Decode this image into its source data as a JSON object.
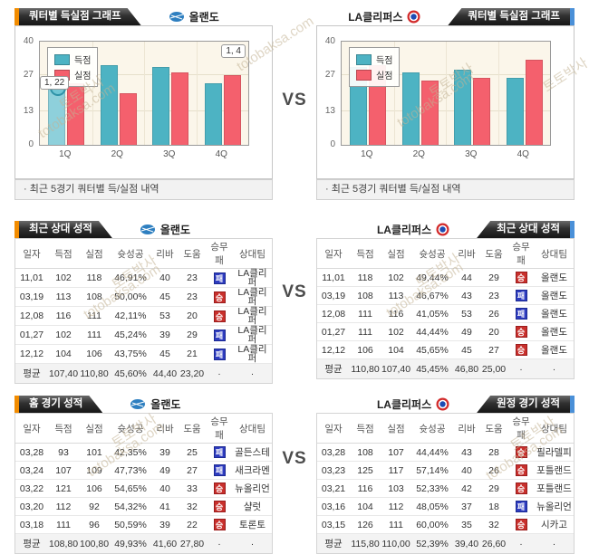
{
  "vs_label": "VS",
  "watermark": {
    "name": "토토박사",
    "site": "totobaksa.com"
  },
  "teams": {
    "left": {
      "name": "올랜도"
    },
    "right": {
      "name": "LA클리퍼스"
    }
  },
  "sections": {
    "chart_left": {
      "tab_title": "쿼터별 득실점 그래프",
      "caption": "· 최근 5경기 쿼터별 득/실점 내역"
    },
    "chart_right": {
      "tab_title": "쿼터별 득실점 그래프",
      "caption": "· 최근 5경기 쿼터별 득/실점 내역"
    },
    "h2h_left_title": "최근 상대 성적",
    "h2h_right_title": "최근 상대 성적",
    "home_title": "홈 경기 성적",
    "away_title": "원정 경기 성적"
  },
  "chart_data": [
    {
      "type": "bar",
      "team": "올랜도",
      "title": "쿼터별 득실점 그래프",
      "categories": [
        "1Q",
        "2Q",
        "3Q",
        "4Q"
      ],
      "series": [
        {
          "name": "득점",
          "color": "#4db3c3",
          "values": [
            22,
            31,
            30,
            24
          ]
        },
        {
          "name": "실점",
          "color": "#f4606d",
          "values": [
            24,
            20,
            28,
            27
          ]
        }
      ],
      "ylim": [
        0,
        40
      ],
      "yticks": [
        40,
        27,
        13,
        0
      ],
      "legend_position": "top-left",
      "grid": true,
      "tooltip_label": "1, 22",
      "corner_label": "1, 4",
      "highlight": [
        0,
        0
      ],
      "highlight_color": "#8ed0db"
    },
    {
      "type": "bar",
      "team": "LA클리퍼스",
      "title": "쿼터별 득실점 그래프",
      "categories": [
        "1Q",
        "2Q",
        "3Q",
        "4Q"
      ],
      "series": [
        {
          "name": "득점",
          "color": "#4db3c3",
          "values": [
            30,
            28,
            29,
            26
          ]
        },
        {
          "name": "실점",
          "color": "#f4606d",
          "values": [
            31,
            25,
            26,
            33
          ]
        }
      ],
      "ylim": [
        0,
        40
      ],
      "yticks": [
        40,
        27,
        13,
        0
      ],
      "legend_position": "top-left",
      "grid": true
    }
  ],
  "tables": {
    "columns": [
      "일자",
      "득점",
      "실점",
      "슛성공",
      "리바",
      "도움",
      "승무패",
      "상대팀"
    ],
    "h2h_left": {
      "rows": [
        [
          "11,01",
          "102",
          "118",
          "46,91%",
          "40",
          "23",
          "패",
          "LA클리퍼"
        ],
        [
          "03,19",
          "113",
          "108",
          "50,00%",
          "45",
          "23",
          "승",
          "LA클리퍼"
        ],
        [
          "12,08",
          "116",
          "111",
          "42,11%",
          "53",
          "20",
          "승",
          "LA클리퍼"
        ],
        [
          "01,27",
          "102",
          "111",
          "45,24%",
          "39",
          "29",
          "패",
          "LA클리퍼"
        ],
        [
          "12,12",
          "104",
          "106",
          "43,75%",
          "45",
          "21",
          "패",
          "LA클리퍼"
        ]
      ],
      "avg": [
        "평균",
        "107,40",
        "110,80",
        "45,60%",
        "44,40",
        "23,20",
        "·",
        "·"
      ]
    },
    "h2h_right": {
      "rows": [
        [
          "11,01",
          "118",
          "102",
          "49,44%",
          "44",
          "29",
          "승",
          "올랜도"
        ],
        [
          "03,19",
          "108",
          "113",
          "46,67%",
          "43",
          "23",
          "패",
          "올랜도"
        ],
        [
          "12,08",
          "111",
          "116",
          "41,05%",
          "53",
          "26",
          "패",
          "올랜도"
        ],
        [
          "01,27",
          "111",
          "102",
          "44,44%",
          "49",
          "20",
          "승",
          "올랜도"
        ],
        [
          "12,12",
          "106",
          "104",
          "45,65%",
          "45",
          "27",
          "승",
          "올랜도"
        ]
      ],
      "avg": [
        "평균",
        "110,80",
        "107,40",
        "45,45%",
        "46,80",
        "25,00",
        "·",
        "·"
      ]
    },
    "home_left": {
      "rows": [
        [
          "03,28",
          "93",
          "101",
          "42,35%",
          "39",
          "25",
          "패",
          "골든스테"
        ],
        [
          "03,24",
          "107",
          "109",
          "47,73%",
          "49",
          "27",
          "패",
          "새크라멘"
        ],
        [
          "03,22",
          "121",
          "106",
          "54,65%",
          "40",
          "33",
          "승",
          "뉴올리언"
        ],
        [
          "03,20",
          "112",
          "92",
          "54,32%",
          "41",
          "32",
          "승",
          "샬럿"
        ],
        [
          "03,18",
          "111",
          "96",
          "50,59%",
          "39",
          "22",
          "승",
          "토론토"
        ]
      ],
      "avg": [
        "평균",
        "108,80",
        "100,80",
        "49,93%",
        "41,60",
        "27,80",
        "·",
        "·"
      ]
    },
    "away_right": {
      "rows": [
        [
          "03,28",
          "108",
          "107",
          "44,44%",
          "43",
          "28",
          "승",
          "필라델피"
        ],
        [
          "03,23",
          "125",
          "117",
          "57,14%",
          "40",
          "26",
          "승",
          "포틀랜드"
        ],
        [
          "03,21",
          "116",
          "103",
          "52,33%",
          "42",
          "29",
          "승",
          "포틀랜드"
        ],
        [
          "03,16",
          "104",
          "112",
          "48,05%",
          "37",
          "18",
          "패",
          "뉴올리언"
        ],
        [
          "03,15",
          "126",
          "111",
          "60,00%",
          "35",
          "32",
          "승",
          "시카고"
        ]
      ],
      "avg": [
        "평균",
        "115,80",
        "110,00",
        "52,39%",
        "39,40",
        "26,60",
        "·",
        "·"
      ]
    }
  }
}
